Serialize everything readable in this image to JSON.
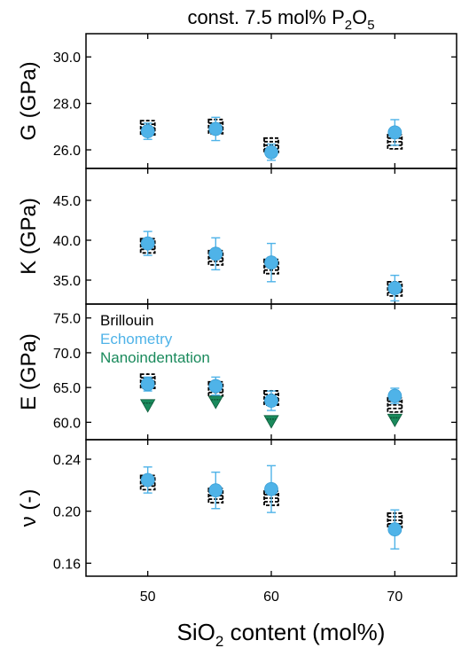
{
  "chart_data": {
    "type": "scatter",
    "title": {
      "prefix": "const. 7.5 mol% P",
      "sub1": "2",
      "mid": "O",
      "sub2": "5"
    },
    "xlabel": {
      "prefix": "SiO",
      "sub": "2",
      "suffix": " content (mol%)"
    },
    "xlim": [
      45,
      75
    ],
    "xticks": [
      50,
      60,
      70
    ],
    "x_tick_labels": [
      "50",
      "60",
      "70"
    ],
    "colors": {
      "brillouin": "#000000",
      "echometry": "#4fb3e8",
      "nanoindentation": "#1a8a5c"
    },
    "legend": {
      "location": "top-left of E panel",
      "entries": [
        {
          "key": "brillouin",
          "label": "Brillouin"
        },
        {
          "key": "echometry",
          "label": "Echometry"
        },
        {
          "key": "nanoindentation",
          "label": "Nanoindentation"
        }
      ]
    },
    "panels": [
      {
        "ylabel": "G (GPa)",
        "ylim": [
          25.2,
          31.0
        ],
        "yticks": [
          26.0,
          28.0,
          30.0
        ],
        "ytick_labels": [
          "26.0",
          "28.0",
          "30.0"
        ],
        "brillouin": [
          {
            "x": 50,
            "y": 26.95,
            "err": 0.22
          },
          {
            "x": 55.5,
            "y": 27.0,
            "err": 0.22
          },
          {
            "x": 60,
            "y": 26.2,
            "err": 0.3
          },
          {
            "x": 70,
            "y": 26.35,
            "err": 0.25
          }
        ],
        "echometry": [
          {
            "x": 50,
            "y": 26.8,
            "err": 0.35
          },
          {
            "x": 55.5,
            "y": 26.9,
            "err": 0.5
          },
          {
            "x": 60,
            "y": 25.9,
            "err": 0.35
          },
          {
            "x": 70,
            "y": 26.75,
            "err": 0.55
          }
        ],
        "nanoindentation": []
      },
      {
        "ylabel": "K (GPa)",
        "ylim": [
          32.0,
          49.0
        ],
        "yticks": [
          35.0,
          40.0,
          45.0
        ],
        "ytick_labels": [
          "35.0",
          "40.0",
          "45.0"
        ],
        "brillouin": [
          {
            "x": 50,
            "y": 39.3,
            "err": 0.5
          },
          {
            "x": 55.5,
            "y": 37.8,
            "err": 0.5
          },
          {
            "x": 60,
            "y": 36.7,
            "err": 0.6
          },
          {
            "x": 70,
            "y": 33.9,
            "err": 0.5
          }
        ],
        "echometry": [
          {
            "x": 50,
            "y": 39.6,
            "err": 1.5
          },
          {
            "x": 55.5,
            "y": 38.3,
            "err": 2.0
          },
          {
            "x": 60,
            "y": 37.2,
            "err": 2.4
          },
          {
            "x": 70,
            "y": 34.0,
            "err": 1.6
          }
        ],
        "nanoindentation": []
      },
      {
        "ylabel": "E (GPa)",
        "ylim": [
          57.5,
          77.0
        ],
        "yticks": [
          60.0,
          65.0,
          70.0,
          75.0
        ],
        "ytick_labels": [
          "60.0",
          "65.0",
          "70.0",
          "75.0"
        ],
        "brillouin": [
          {
            "x": 50,
            "y": 65.9,
            "err": 0.6
          },
          {
            "x": 55.5,
            "y": 64.8,
            "err": 0.6
          },
          {
            "x": 60,
            "y": 63.5,
            "err": 0.7
          },
          {
            "x": 70,
            "y": 62.5,
            "err": 0.7
          }
        ],
        "echometry": [
          {
            "x": 50,
            "y": 65.5,
            "err": 1.0
          },
          {
            "x": 55.5,
            "y": 65.2,
            "err": 1.3
          },
          {
            "x": 60,
            "y": 63.1,
            "err": 1.4
          },
          {
            "x": 70,
            "y": 63.8,
            "err": 1.1
          }
        ],
        "nanoindentation": [
          {
            "x": 50,
            "y": 62.5,
            "err": 0.3
          },
          {
            "x": 55.5,
            "y": 63.0,
            "err": 0.3
          },
          {
            "x": 60,
            "y": 60.2,
            "err": 0.3
          },
          {
            "x": 70,
            "y": 60.4,
            "err": 0.3
          }
        ]
      },
      {
        "ylabel": "ν (-)",
        "ylim": [
          0.15,
          0.255
        ],
        "yticks": [
          0.16,
          0.2,
          0.24
        ],
        "ytick_labels": [
          "0.16",
          "0.20",
          "0.24"
        ],
        "brillouin": [
          {
            "x": 50,
            "y": 0.222,
            "err": 0.003
          },
          {
            "x": 55.5,
            "y": 0.212,
            "err": 0.004
          },
          {
            "x": 60,
            "y": 0.21,
            "err": 0.004
          },
          {
            "x": 70,
            "y": 0.193,
            "err": 0.004
          }
        ],
        "echometry": [
          {
            "x": 50,
            "y": 0.224,
            "err": 0.01
          },
          {
            "x": 55.5,
            "y": 0.216,
            "err": 0.014
          },
          {
            "x": 60,
            "y": 0.217,
            "err": 0.018
          },
          {
            "x": 70,
            "y": 0.186,
            "err": 0.015
          }
        ],
        "nanoindentation": []
      }
    ]
  }
}
